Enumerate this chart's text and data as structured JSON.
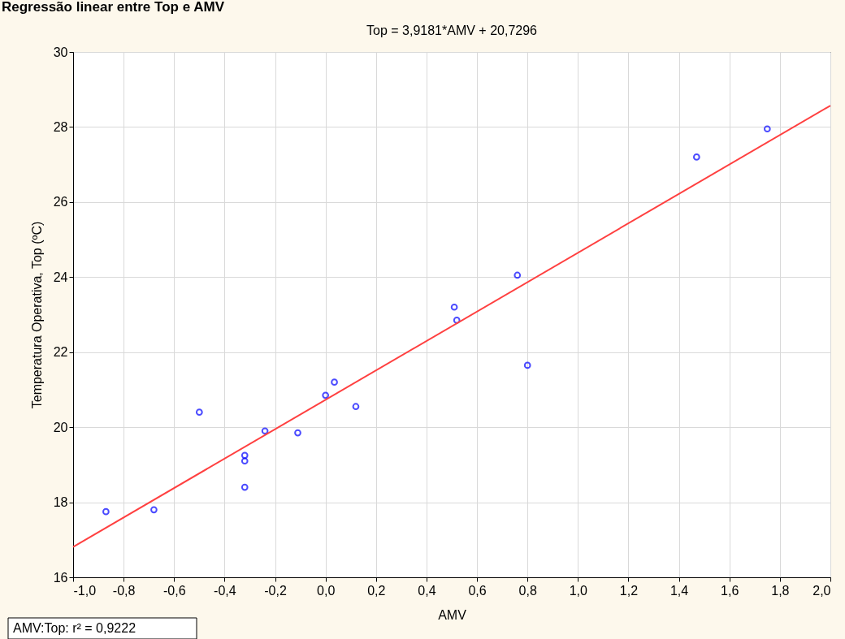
{
  "chart_data": {
    "type": "scatter",
    "title": "Regressão linear entre Top e AMV",
    "subtitle": "Top = 3,9181*AMV + 20,7296",
    "xlabel": "AMV",
    "ylabel": "Temperatura Operativa, Top (ºC)",
    "annotations": [
      "AMV:Top:  r² = 0,9222"
    ],
    "x": [
      -0.87,
      -0.68,
      -0.5,
      -0.32,
      -0.32,
      -0.32,
      -0.24,
      -0.11,
      0.0,
      0.035,
      0.12,
      0.51,
      0.52,
      0.76,
      0.8,
      1.47,
      1.75
    ],
    "series": [
      {
        "color": "#0000ff",
        "marker": "circle",
        "values": [
          17.75,
          17.8,
          20.4,
          18.4,
          19.1,
          19.25,
          19.9,
          19.85,
          20.85,
          21.2,
          20.55,
          23.2,
          22.85,
          24.05,
          21.65,
          27.2,
          27.95
        ]
      },
      {
        "type": "line",
        "color": "#ff4040",
        "x": [
          -1,
          2
        ],
        "values": [
          16.81,
          28.57
        ],
        "marker": "none",
        "line_style": "solid"
      }
    ],
    "xlim": [
      -1,
      2
    ],
    "ylim": [
      16,
      30
    ],
    "xticks": [
      {
        "value": -1,
        "label": "-1,0"
      },
      {
        "value": -0.8,
        "label": "-0,8"
      },
      {
        "value": -0.6,
        "label": "-0,6"
      },
      {
        "value": -0.4,
        "label": "-0,4"
      },
      {
        "value": -0.2,
        "label": "-0,2"
      },
      {
        "value": 0,
        "label": "0,0"
      },
      {
        "value": 0.2,
        "label": "0,2"
      },
      {
        "value": 0.4,
        "label": "0,4"
      },
      {
        "value": 0.6,
        "label": "0,6"
      },
      {
        "value": 0.8,
        "label": "0,8"
      },
      {
        "value": 1,
        "label": "1,0"
      },
      {
        "value": 1.2,
        "label": "1,2"
      },
      {
        "value": 1.4,
        "label": "1,4"
      },
      {
        "value": 1.6,
        "label": "1,6"
      },
      {
        "value": 1.8,
        "label": "1,8"
      },
      {
        "value": 2,
        "label": "2,0"
      }
    ],
    "yticks": [
      16,
      18,
      20,
      22,
      24,
      26,
      28,
      30
    ],
    "grid": true,
    "legend": false
  }
}
